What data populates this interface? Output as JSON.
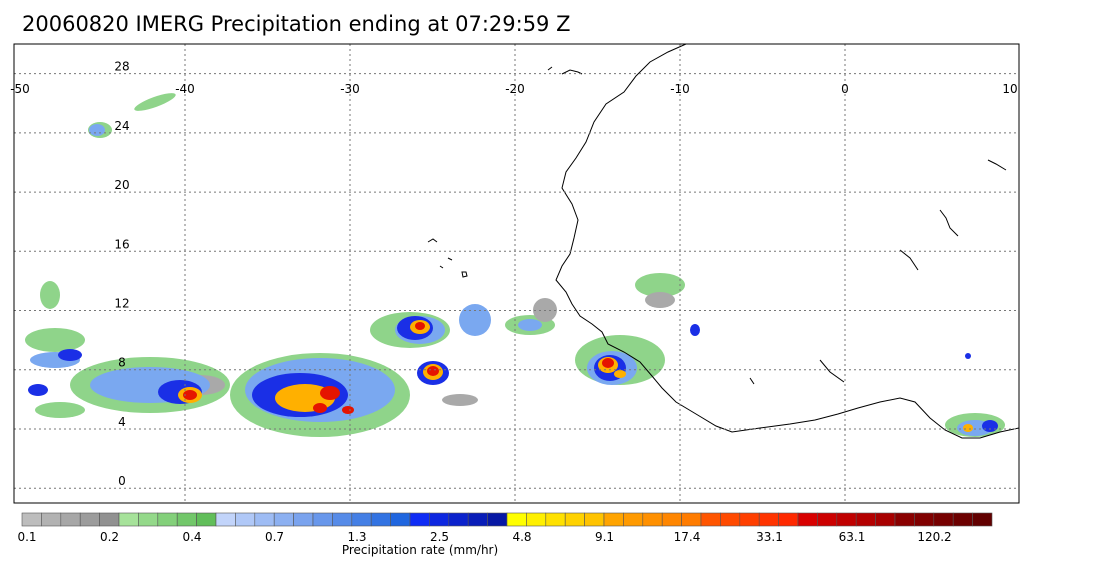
{
  "title": "20060820 IMERG Precipitation ending at 07:29:59 Z",
  "map": {
    "lon_range": [
      -50,
      10
    ],
    "lat_range": [
      -1,
      30
    ],
    "lon_labels": [
      "-50",
      "-40",
      "-30",
      "-20",
      "-10",
      "0",
      "10"
    ],
    "lat_labels": [
      "28",
      "24",
      "20",
      "16",
      "12",
      "8",
      "4",
      "0"
    ],
    "grid": "dotted",
    "coastline_color": "#000000"
  },
  "colorbar": {
    "label": "Precipitation rate (mm/hr)",
    "tick_labels": [
      "0.1",
      "0.2",
      "0.4",
      "0.7",
      "1.3",
      "2.5",
      "4.8",
      "9.1",
      "17.4",
      "33.1",
      "63.1",
      "120.2"
    ],
    "colors": [
      "#bdbdbd",
      "#b2b2b2",
      "#a7a7a7",
      "#9c9c9c",
      "#919191",
      "#a6e29a",
      "#94d98a",
      "#83d07a",
      "#72c76a",
      "#61be5a",
      "#c2d4fa",
      "#b0c8f7",
      "#9ebcf4",
      "#8cb0f1",
      "#7aa3ee",
      "#6897eb",
      "#568be8",
      "#447fe5",
      "#3273e2",
      "#2066df",
      "#0f2cf5",
      "#0d27e0",
      "#0b22cc",
      "#091db8",
      "#0718a4",
      "#ffff00",
      "#fff000",
      "#ffe100",
      "#ffd200",
      "#ffc300",
      "#ffa400",
      "#ff9a00",
      "#ff9000",
      "#ff8600",
      "#ff7c00",
      "#ff5500",
      "#ff4a00",
      "#ff3f00",
      "#ff3400",
      "#ff2900",
      "#d80000",
      "#cc0000",
      "#c00000",
      "#b40000",
      "#a80000",
      "#8a0000",
      "#800000",
      "#760000",
      "#6c0000",
      "#620000"
    ]
  }
}
